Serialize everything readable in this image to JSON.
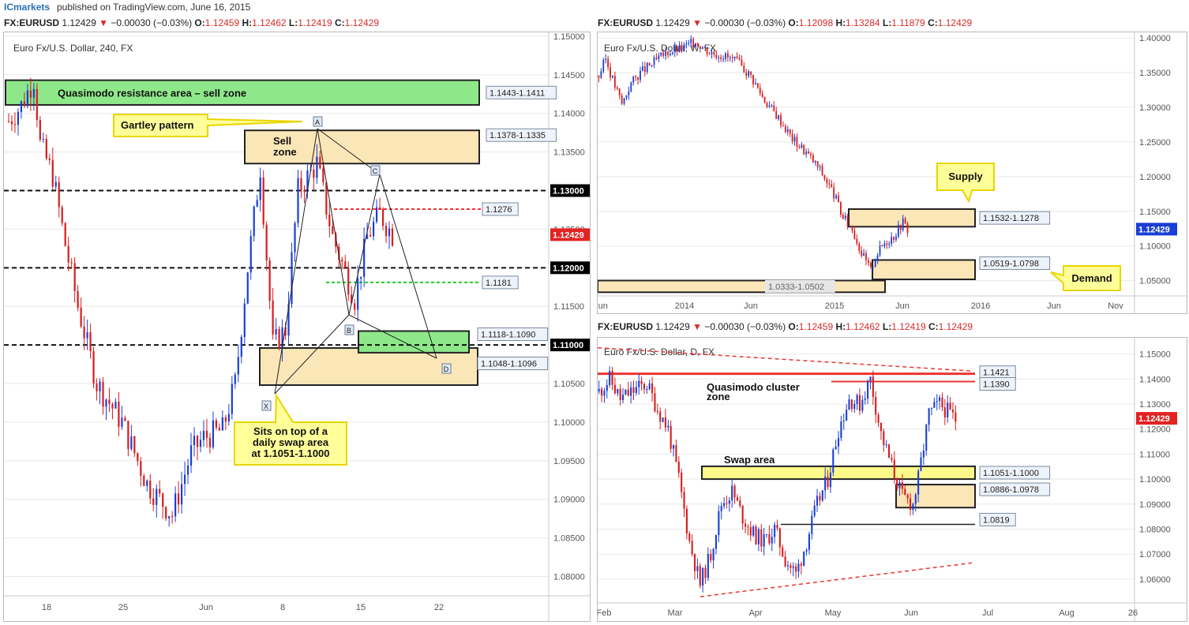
{
  "publisher": {
    "brand": "ICmarkets",
    "text": "published on TradingView.com, June 16, 2015"
  },
  "panels": {
    "h4": {
      "header": {
        "symbol": "FX:EURUSD",
        "price": "1.12429",
        "change": "−0.00030 (−0.03%)",
        "o": "1.12459",
        "h": "1.12462",
        "l": "1.12419",
        "c": "1.12429"
      },
      "title": "Euro Fx/U.S. Dollar, 240, FX"
    },
    "weekly": {
      "header": {
        "symbol": "FX:EURUSD",
        "price": "1.12429",
        "change": "−0.00030 (−0.03%)",
        "o": "1.12098",
        "h": "1.13284",
        "l": "1.11879",
        "c": "1.12429"
      },
      "title": "Euro Fx/U.S. Dollar, W, FX"
    },
    "daily": {
      "header": {
        "symbol": "FX:EURUSD",
        "price": "1.12429",
        "change": "−0.00030 (−0.03%)",
        "o": "1.12459",
        "h": "1.12462",
        "l": "1.12419",
        "c": "1.12429"
      },
      "title": "Euro Fx/U.S. Dollar, D, FX"
    }
  },
  "header_labels": {
    "o": "O:",
    "h": "H:",
    "l": "L:",
    "c": "C:"
  },
  "colors": {
    "bull": "#1a3fd6",
    "bear": "#d81c1c",
    "zone_tan": "#fbe6b8",
    "zone_green": "#8ee88a",
    "callout": "#ffff99",
    "callout_border": "#e8d500",
    "grid": "#e8e8e8"
  },
  "chart_data": [
    {
      "id": "h4",
      "type": "candlestick",
      "title": "Euro Fx/U.S. Dollar, 240, FX",
      "timeframe": "240",
      "ylim": [
        1.0775,
        1.1505
      ],
      "yticks": [
        "1.15000",
        "1.14500",
        "1.14000",
        "1.13500",
        "1.13000",
        "1.12500",
        "1.12000",
        "1.11500",
        "1.11000",
        "1.10500",
        "1.10000",
        "1.09500",
        "1.09000",
        "1.08500",
        "1.08000"
      ],
      "xticks": [
        "18",
        "25",
        "Jun",
        "8",
        "15",
        "22"
      ],
      "last_price": "1.12429",
      "zones": [
        {
          "label": "Quasimodo resistance area – sell zone",
          "range": "1.1443-1.1411",
          "color": "green"
        },
        {
          "label": "Sell zone",
          "range": "1.1378-1.1335",
          "color": "tan"
        },
        {
          "label": "",
          "range": "1.1118-1.1090",
          "color": "green"
        },
        {
          "label": "",
          "range": "1.1048-1.1096",
          "color": "tan"
        }
      ],
      "levels": [
        {
          "value": "1.13000",
          "style": "black-dashed"
        },
        {
          "value": "1.1276",
          "style": "red-dashed"
        },
        {
          "value": "1.12000",
          "style": "black-dashed"
        },
        {
          "value": "1.1181",
          "style": "green-dashed"
        },
        {
          "value": "1.11000",
          "style": "black-dashed"
        }
      ],
      "pattern_points": [
        "X",
        "A",
        "B",
        "C",
        "D"
      ],
      "annotations": [
        "Gartley pattern",
        "Sits on top of a daily swap area at 1.1051-1.1000"
      ]
    },
    {
      "id": "weekly",
      "type": "candlestick",
      "title": "Euro Fx/U.S. Dollar, W, FX",
      "timeframe": "W",
      "ylim": [
        1.028,
        1.408
      ],
      "yticks": [
        "1.40000",
        "1.35000",
        "1.30000",
        "1.25000",
        "1.20000",
        "1.15000",
        "1.10000",
        "1.05000"
      ],
      "xticks": [
        "Jun",
        "2014",
        "Jun",
        "2015",
        "Jun",
        "2016",
        "Jun",
        "Nov"
      ],
      "last_price": "1.12429",
      "zones": [
        {
          "label": "Supply",
          "range": "1.1532-1.1278",
          "color": "tan"
        },
        {
          "label": "Demand",
          "range": "1.0519-1.0798",
          "color": "tan"
        },
        {
          "label": "",
          "range": "1.0333-1.0502",
          "color": "tan"
        }
      ]
    },
    {
      "id": "daily",
      "type": "candlestick",
      "title": "Euro Fx/U.S. Dollar, D, FX",
      "timeframe": "D",
      "ylim": [
        1.0505,
        1.1565
      ],
      "yticks": [
        "1.15000",
        "1.14000",
        "1.13000",
        "1.12000",
        "1.11000",
        "1.10000",
        "1.09000",
        "1.08000",
        "1.07000",
        "1.06000"
      ],
      "xticks": [
        "Feb",
        "Mar",
        "Apr",
        "May",
        "Jun",
        "Jul",
        "Aug",
        "26"
      ],
      "last_price": "1.12429",
      "levels": [
        {
          "value": "1.1421",
          "label": "Quasimodo cluster zone"
        },
        {
          "value": "1.1390",
          "label": ""
        },
        {
          "value": "1.0819",
          "label": ""
        }
      ],
      "zones": [
        {
          "label": "Swap area",
          "range": "1.1051-1.1000",
          "color": "yellow"
        },
        {
          "label": "",
          "range": "1.0886-1.0978",
          "color": "tan"
        }
      ]
    }
  ]
}
